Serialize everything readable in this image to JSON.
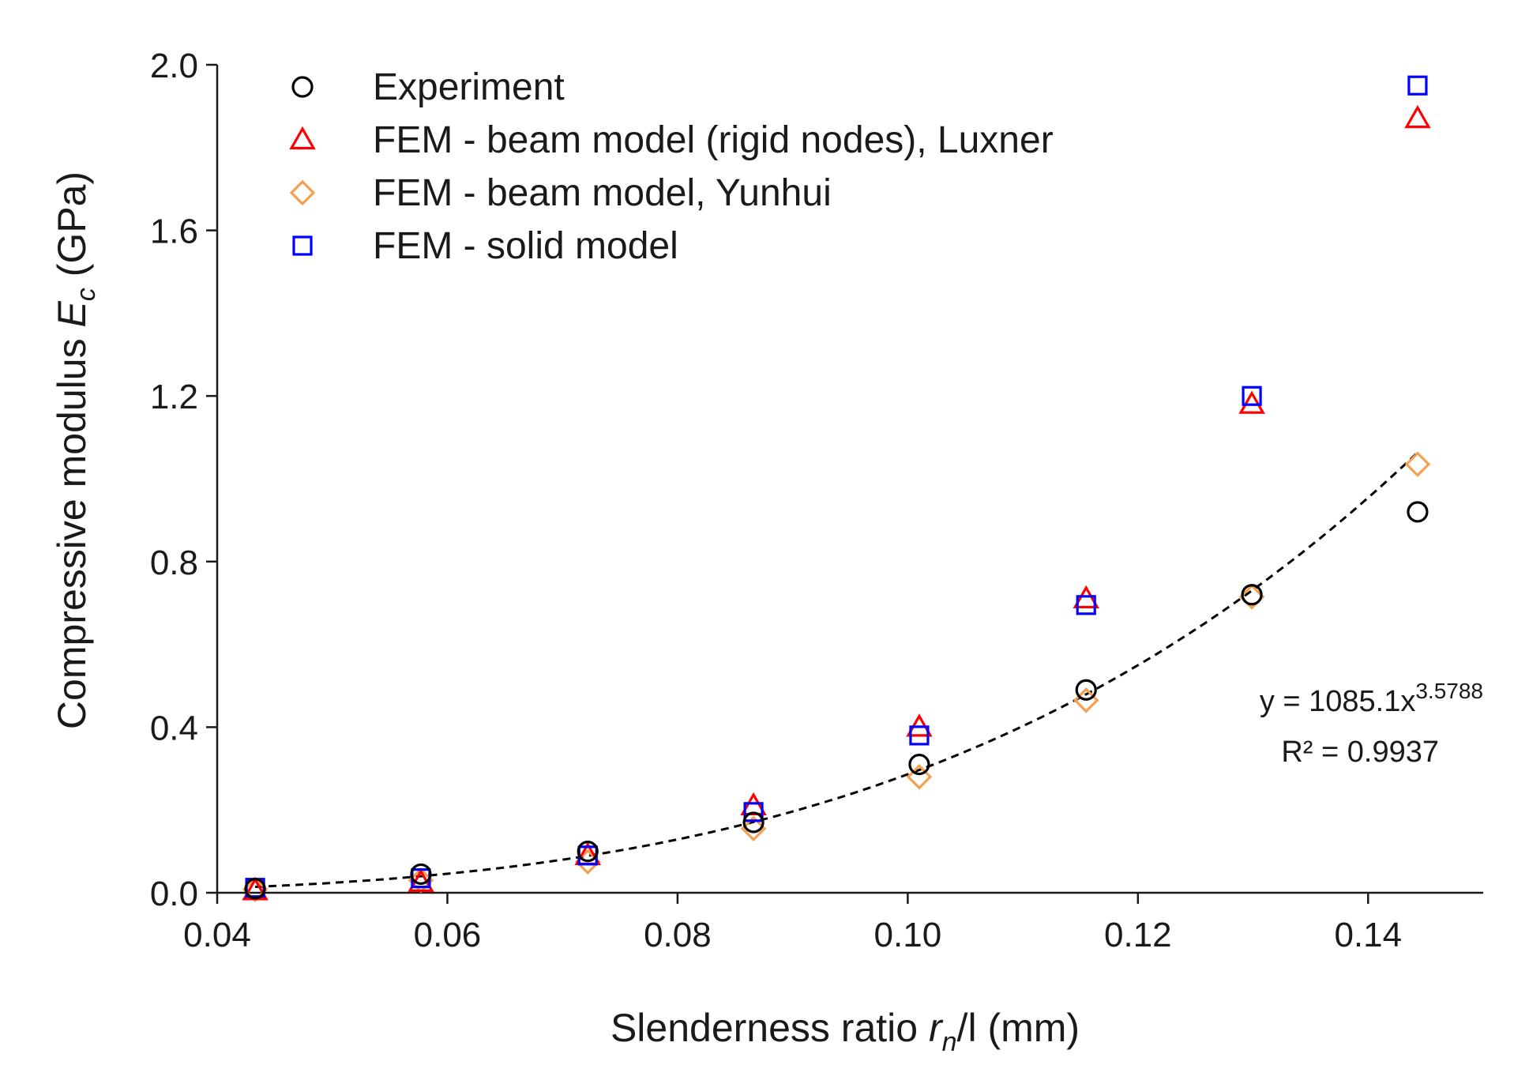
{
  "chart_data": {
    "type": "scatter",
    "title": "",
    "xlabel": {
      "main": "Slenderness ratio ",
      "var": "r",
      "sub": "n",
      "rest": "/l (mm)"
    },
    "ylabel": {
      "main": "Compressive modulus ",
      "var": "E",
      "sub": "c",
      "rest": " (GPa)"
    },
    "xlim": [
      0.04,
      0.15
    ],
    "ylim": [
      0.0,
      2.0
    ],
    "xticks": [
      0.04,
      0.06,
      0.08,
      0.1,
      0.12,
      0.14
    ],
    "xtick_labels": [
      "0.04",
      "0.06",
      "0.08",
      "0.10",
      "0.12",
      "0.14"
    ],
    "yticks": [
      0.0,
      0.4,
      0.8,
      1.2,
      1.6,
      2.0
    ],
    "ytick_labels": [
      "0.0",
      "0.4",
      "0.8",
      "1.2",
      "1.6",
      "2.0"
    ],
    "legend_position": "top-left",
    "series": [
      {
        "name": "Experiment",
        "marker": "circle",
        "color": "#000000",
        "x": [
          0.0433,
          0.0577,
          0.0722,
          0.0866,
          0.101,
          0.1155,
          0.1299,
          0.1443
        ],
        "y": [
          0.01,
          0.045,
          0.1,
          0.17,
          0.31,
          0.49,
          0.72,
          0.92
        ]
      },
      {
        "name": "FEM - beam model (rigid nodes), Luxner",
        "marker": "triangle",
        "color": "#ff0000",
        "x": [
          0.0433,
          0.0577,
          0.0722,
          0.0866,
          0.101,
          0.1155,
          0.1299,
          0.1443
        ],
        "y": [
          0.005,
          0.025,
          0.09,
          0.21,
          0.4,
          0.71,
          1.18,
          1.87
        ]
      },
      {
        "name": "FEM - beam model, Yunhui",
        "marker": "diamond",
        "color": "#f4a050",
        "x": [
          0.0433,
          0.0577,
          0.0722,
          0.0866,
          0.101,
          0.1155,
          0.1299,
          0.1443
        ],
        "y": [
          0.008,
          0.03,
          0.075,
          0.155,
          0.28,
          0.465,
          0.715,
          1.035
        ]
      },
      {
        "name": "FEM - solid model",
        "marker": "square",
        "color": "#0000ff",
        "x": [
          0.0433,
          0.0577,
          0.0722,
          0.0866,
          0.101,
          0.1155,
          0.1299,
          0.1443
        ],
        "y": [
          0.012,
          0.035,
          0.09,
          0.195,
          0.38,
          0.695,
          1.2,
          1.95
        ]
      }
    ],
    "trendline": {
      "type": "power",
      "coefficient": 1085.1,
      "exponent": 3.5788,
      "x_range": [
        0.0433,
        0.1443
      ],
      "style": "dashed",
      "color": "#000000",
      "equation_prefix": "y = 1085.1x",
      "equation_exponent": "3.5788",
      "r_squared_label": "R² = 0.9937"
    }
  }
}
